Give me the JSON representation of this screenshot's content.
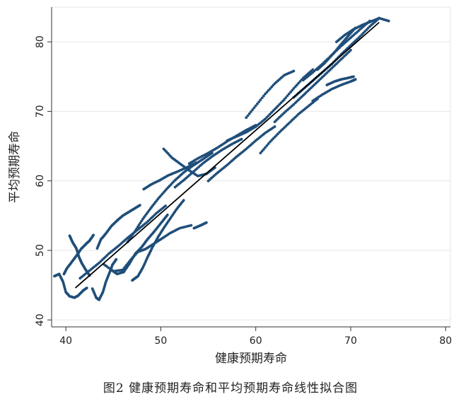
{
  "caption": "图2  健康预期寿命和平均预期寿命线性拟合图",
  "chart_data": {
    "type": "scatter",
    "title": "",
    "xlabel": "健康预期寿命",
    "ylabel": "平均预期寿命",
    "xlim": [
      38.5,
      80.5
    ],
    "ylim": [
      39,
      85
    ],
    "xticks": [
      40,
      50,
      60,
      70,
      80
    ],
    "yticks": [
      40,
      50,
      60,
      70,
      80
    ],
    "grid": true,
    "point_color": "#1f4e79",
    "fit_line_color": "#000000",
    "fit_line": {
      "x": [
        41,
        73
      ],
      "y": [
        44.6,
        82.8
      ]
    },
    "trajectories": [
      [
        [
          38.8,
          46.3
        ],
        [
          39.3,
          46.6
        ],
        [
          39.7,
          45.5
        ],
        [
          40.0,
          44.0
        ],
        [
          40.4,
          43.4
        ],
        [
          40.9,
          43.2
        ],
        [
          41.3,
          43.5
        ],
        [
          41.8,
          44.2
        ],
        [
          42.2,
          44.6
        ]
      ],
      [
        [
          39.8,
          46.6
        ],
        [
          40.1,
          47.4
        ],
        [
          40.6,
          48.3
        ],
        [
          41.1,
          49.2
        ],
        [
          41.6,
          50.2
        ],
        [
          42.1,
          50.9
        ],
        [
          42.5,
          51.4
        ],
        [
          42.9,
          52.2
        ]
      ],
      [
        [
          40.4,
          52.1
        ],
        [
          40.7,
          51.2
        ],
        [
          41.1,
          50.3
        ],
        [
          41.4,
          49.0
        ],
        [
          41.7,
          48.1
        ],
        [
          42.1,
          47.2
        ],
        [
          42.5,
          46.4
        ]
      ],
      [
        [
          42.8,
          44.5
        ],
        [
          43.2,
          43.2
        ],
        [
          43.5,
          42.9
        ],
        [
          43.9,
          44.0
        ],
        [
          44.2,
          45.4
        ],
        [
          44.6,
          46.8
        ],
        [
          44.9,
          47.9
        ],
        [
          45.3,
          48.7
        ]
      ],
      [
        [
          43.3,
          50.3
        ],
        [
          43.7,
          51.6
        ],
        [
          44.2,
          52.4
        ],
        [
          44.8,
          53.5
        ],
        [
          45.4,
          54.3
        ],
        [
          46.0,
          55.0
        ],
        [
          46.6,
          55.5
        ],
        [
          47.2,
          56.0
        ],
        [
          47.8,
          56.5
        ]
      ],
      [
        [
          41.5,
          46.0
        ],
        [
          42.5,
          47.1
        ],
        [
          43.5,
          48.2
        ],
        [
          44.5,
          49.5
        ],
        [
          45.5,
          50.6
        ],
        [
          46.5,
          51.8
        ],
        [
          47.5,
          52.9
        ],
        [
          48.5,
          54.0
        ],
        [
          49.5,
          55.3
        ],
        [
          50.5,
          56.4
        ]
      ],
      [
        [
          44.0,
          48.0
        ],
        [
          45.0,
          47.0
        ],
        [
          46.0,
          47.2
        ],
        [
          46.8,
          48.6
        ],
        [
          47.6,
          49.8
        ],
        [
          48.4,
          50.2
        ],
        [
          49.2,
          50.9
        ],
        [
          50.0,
          51.6
        ],
        [
          51.0,
          52.5
        ],
        [
          52.0,
          53.2
        ],
        [
          53.2,
          53.6
        ]
      ],
      [
        [
          44.8,
          47.2
        ],
        [
          45.4,
          46.6
        ],
        [
          46.1,
          46.9
        ],
        [
          46.7,
          48.1
        ],
        [
          47.3,
          49.5
        ],
        [
          48.0,
          50.5
        ],
        [
          48.6,
          51.6
        ],
        [
          49.3,
          52.7
        ],
        [
          50.0,
          53.9
        ],
        [
          50.7,
          55.1
        ]
      ],
      [
        [
          47.0,
          45.7
        ],
        [
          47.6,
          46.3
        ],
        [
          48.1,
          47.5
        ],
        [
          48.6,
          49.0
        ],
        [
          49.1,
          50.4
        ],
        [
          49.7,
          51.9
        ],
        [
          50.3,
          53.2
        ],
        [
          51.0,
          54.6
        ],
        [
          51.7,
          56.0
        ],
        [
          52.4,
          57.2
        ]
      ],
      [
        [
          46.5,
          51.2
        ],
        [
          47.3,
          52.8
        ],
        [
          48.1,
          54.5
        ],
        [
          48.9,
          56.0
        ],
        [
          49.7,
          57.4
        ],
        [
          50.6,
          58.8
        ],
        [
          51.5,
          60.1
        ],
        [
          52.4,
          61.2
        ],
        [
          53.4,
          62.2
        ],
        [
          54.4,
          63.1
        ],
        [
          55.4,
          64.0
        ]
      ],
      [
        [
          48.2,
          58.8
        ],
        [
          49.0,
          59.5
        ],
        [
          49.9,
          60.1
        ],
        [
          50.8,
          60.8
        ],
        [
          51.7,
          61.3
        ],
        [
          52.7,
          61.9
        ],
        [
          53.7,
          62.6
        ]
      ],
      [
        [
          50.3,
          64.6
        ],
        [
          51.2,
          63.3
        ],
        [
          52.1,
          62.4
        ],
        [
          53.0,
          61.5
        ],
        [
          53.9,
          60.7
        ],
        [
          54.8,
          61.0
        ],
        [
          55.7,
          61.9
        ]
      ],
      [
        [
          51.5,
          59.1
        ],
        [
          52.5,
          60.2
        ],
        [
          53.5,
          61.4
        ],
        [
          54.5,
          62.6
        ],
        [
          55.5,
          63.6
        ],
        [
          56.5,
          64.5
        ],
        [
          57.5,
          65.3
        ],
        [
          58.5,
          66.0
        ]
      ],
      [
        [
          53.0,
          62.5
        ],
        [
          54.0,
          63.3
        ],
        [
          55.0,
          64.0
        ],
        [
          56.0,
          64.8
        ],
        [
          57.0,
          65.7
        ],
        [
          58.0,
          66.5
        ],
        [
          59.0,
          67.3
        ],
        [
          60.0,
          68.0
        ]
      ],
      [
        [
          55.0,
          60.0
        ],
        [
          56.0,
          61.2
        ],
        [
          57.0,
          62.3
        ],
        [
          58.0,
          63.5
        ],
        [
          59.0,
          64.6
        ],
        [
          60.0,
          65.8
        ],
        [
          61.0,
          66.9
        ],
        [
          62.0,
          67.8
        ]
      ],
      [
        [
          57.0,
          65.8
        ],
        [
          58.0,
          66.4
        ],
        [
          59.0,
          67.0
        ],
        [
          60.0,
          67.8
        ],
        [
          61.0,
          68.9
        ],
        [
          62.0,
          70.3
        ],
        [
          63.0,
          71.7
        ],
        [
          64.0,
          73.3
        ],
        [
          65.0,
          74.8
        ],
        [
          66.0,
          76.0
        ]
      ],
      [
        [
          59.0,
          69.1
        ],
        [
          60.0,
          70.8
        ],
        [
          61.0,
          72.5
        ],
        [
          62.0,
          74.0
        ],
        [
          63.0,
          75.2
        ],
        [
          64.0,
          75.8
        ]
      ],
      [
        [
          60.5,
          64.0
        ],
        [
          61.5,
          65.6
        ],
        [
          62.5,
          67.0
        ],
        [
          63.5,
          68.3
        ],
        [
          64.5,
          69.6
        ],
        [
          65.5,
          70.7
        ],
        [
          66.5,
          71.8
        ]
      ],
      [
        [
          62.0,
          68.5
        ],
        [
          63.0,
          69.8
        ],
        [
          64.0,
          71.0
        ],
        [
          65.0,
          72.3
        ],
        [
          66.0,
          73.6
        ],
        [
          67.0,
          74.9
        ],
        [
          68.0,
          76.2
        ],
        [
          69.0,
          77.5
        ],
        [
          70.0,
          78.8
        ]
      ],
      [
        [
          64.0,
          72.0
        ],
        [
          65.0,
          73.2
        ],
        [
          66.0,
          74.4
        ],
        [
          67.0,
          75.6
        ],
        [
          68.0,
          76.8
        ],
        [
          69.0,
          78.2
        ],
        [
          70.0,
          79.5
        ],
        [
          71.0,
          80.8
        ],
        [
          72.0,
          82.2
        ],
        [
          73.0,
          83.4
        ]
      ],
      [
        [
          65.0,
          74.5
        ],
        [
          66.0,
          75.6
        ],
        [
          67.0,
          76.8
        ],
        [
          68.0,
          78.1
        ],
        [
          69.0,
          79.4
        ],
        [
          70.0,
          80.6
        ],
        [
          71.0,
          81.8
        ],
        [
          72.0,
          83.0
        ]
      ],
      [
        [
          66.5,
          76.0
        ],
        [
          67.3,
          77.0
        ],
        [
          68.1,
          78.2
        ],
        [
          68.9,
          79.5
        ],
        [
          69.7,
          80.8
        ],
        [
          70.5,
          82.0
        ]
      ],
      [
        [
          67.5,
          73.8
        ],
        [
          68.3,
          74.3
        ],
        [
          69.0,
          74.6
        ],
        [
          69.7,
          74.8
        ],
        [
          70.3,
          75.0
        ]
      ],
      [
        [
          66.0,
          71.5
        ],
        [
          67.0,
          72.4
        ],
        [
          68.0,
          73.2
        ],
        [
          69.0,
          73.8
        ],
        [
          70.0,
          74.3
        ],
        [
          70.5,
          74.6
        ]
      ],
      [
        [
          68.5,
          80.0
        ],
        [
          69.4,
          81.0
        ],
        [
          70.3,
          81.8
        ],
        [
          71.2,
          82.4
        ],
        [
          72.1,
          82.9
        ],
        [
          73.0,
          83.4
        ],
        [
          74.0,
          83.0
        ]
      ],
      [
        [
          53.5,
          53.2
        ],
        [
          54.2,
          53.6
        ],
        [
          54.8,
          54.0
        ]
      ]
    ]
  }
}
